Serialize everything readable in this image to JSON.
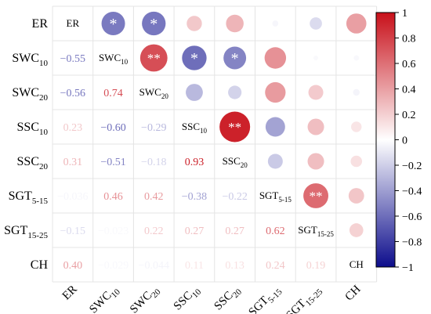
{
  "chart_data": {
    "type": "heatmap",
    "title": "",
    "variables": [
      {
        "base": "ER",
        "sub": ""
      },
      {
        "base": "SWC",
        "sub": "10"
      },
      {
        "base": "SWC",
        "sub": "20"
      },
      {
        "base": "SSC",
        "sub": "10"
      },
      {
        "base": "SSC",
        "sub": "20"
      },
      {
        "base": "SGT",
        "sub": "5-15"
      },
      {
        "base": "SGT",
        "sub": "15-25"
      },
      {
        "base": "CH",
        "sub": ""
      }
    ],
    "matrix": [
      [
        1,
        -0.55,
        -0.56,
        0.23,
        0.31,
        -0.036,
        -0.15,
        0.4
      ],
      [
        -0.55,
        1,
        0.74,
        -0.6,
        -0.51,
        0.46,
        -0.023,
        -0.029
      ],
      [
        -0.56,
        0.74,
        1,
        -0.29,
        -0.18,
        0.42,
        0.22,
        -0.044
      ],
      [
        0.23,
        -0.6,
        -0.29,
        1,
        0.93,
        -0.38,
        0.27,
        0.11
      ],
      [
        0.31,
        -0.51,
        -0.18,
        0.93,
        1,
        -0.22,
        0.27,
        0.13
      ],
      [
        -0.036,
        0.46,
        0.42,
        -0.38,
        -0.22,
        1,
        0.62,
        0.24
      ],
      [
        -0.15,
        -0.023,
        0.22,
        0.27,
        0.27,
        0.62,
        1,
        0.19
      ],
      [
        0.4,
        -0.029,
        -0.044,
        0.11,
        0.13,
        0.24,
        0.19,
        1
      ]
    ],
    "lower_labels": [
      [
        "",
        "",
        "",
        "",
        "",
        "",
        "",
        ""
      ],
      [
        "−0.55",
        "",
        "",
        "",
        "",
        "",
        "",
        ""
      ],
      [
        "−0.56",
        "0.74",
        "",
        "",
        "",
        "",
        "",
        ""
      ],
      [
        "0.23",
        "−0.60",
        "−0.29",
        "",
        "",
        "",
        "",
        ""
      ],
      [
        "0.31",
        "−0.51",
        "−0.18",
        "0.93",
        "",
        "",
        "",
        ""
      ],
      [
        "−0.036",
        "0.46",
        "0.42",
        "−0.38",
        "−0.22",
        "",
        "",
        ""
      ],
      [
        "−0.15",
        "−0.023",
        "0.22",
        "0.27",
        "0.27",
        "0.62",
        "",
        ""
      ],
      [
        "0.40",
        "−0.029",
        "−0.044",
        "0.11",
        "0.13",
        "0.24",
        "0.19",
        ""
      ]
    ],
    "significance": [
      {
        "row": 0,
        "col": 1,
        "mark": "*"
      },
      {
        "row": 0,
        "col": 2,
        "mark": "*"
      },
      {
        "row": 1,
        "col": 2,
        "mark": "**"
      },
      {
        "row": 1,
        "col": 3,
        "mark": "*"
      },
      {
        "row": 1,
        "col": 4,
        "mark": "*"
      },
      {
        "row": 3,
        "col": 4,
        "mark": "**"
      },
      {
        "row": 5,
        "col": 6,
        "mark": "**"
      }
    ],
    "colorbar": {
      "range": [
        -1,
        1
      ],
      "ticks": [
        1,
        0.8,
        0.6,
        0.4,
        0.2,
        0,
        -0.2,
        -0.4,
        -0.6,
        -0.8,
        -1
      ],
      "tick_labels": [
        "1",
        "0.8",
        "0.6",
        "0.4",
        "0.2",
        "0",
        "−0.2",
        "−0.4",
        "−0.6",
        "−0.8",
        "−1"
      ],
      "colors": {
        "negative": "#0d0d8c",
        "zero": "#ffffff",
        "positive": "#c8101a"
      }
    },
    "legend_position": "right"
  }
}
